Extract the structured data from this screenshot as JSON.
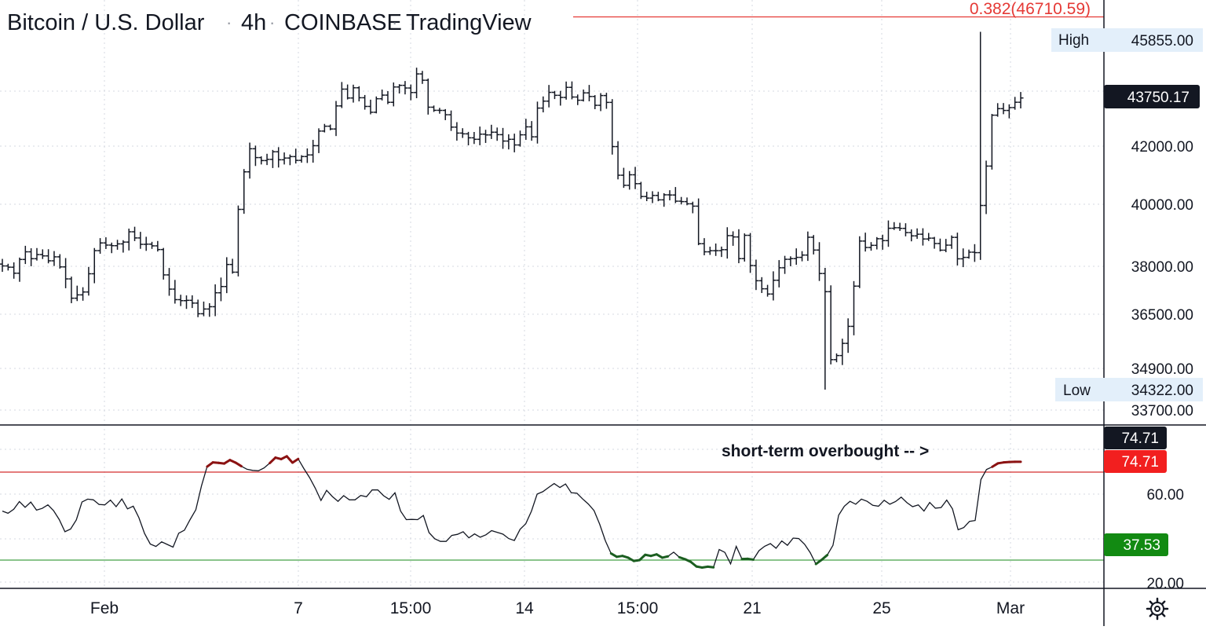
{
  "header": {
    "symbol": "Bitcoin / U.S. Dollar",
    "interval": "4h",
    "exchange": "COINBASE",
    "brand": "TradingView",
    "sep": "·"
  },
  "colors": {
    "bg": "#ffffff",
    "candle": "#131722",
    "grid": "#d6d9e0",
    "fib_line": "#e53935",
    "overbought_seg": "#8b1212",
    "oversold_seg": "#1b5e20",
    "upper_band": "#d32f2f",
    "lower_band": "#43a047",
    "label_dark": "#131722",
    "label_red": "#f21f1f",
    "label_green": "#128a12",
    "hl_box": "#e3effa"
  },
  "chart_data": [
    {
      "type": "ohlc",
      "title": "Bitcoin / U.S. Dollar · 4h · COINBASE · TradingView",
      "y_scale": {
        "ticks": [
          {
            "label": "45855.00",
            "value": 45855
          },
          {
            "label": "42000.00",
            "value": 42000
          },
          {
            "label": "40000.00",
            "value": 40000
          },
          {
            "label": "38000.00",
            "value": 38000
          },
          {
            "label": "36500.00",
            "value": 36500
          },
          {
            "label": "34900.00",
            "value": 34900
          },
          {
            "label": "34322.00",
            "value": 34322
          },
          {
            "label": "33700.00",
            "value": 33700
          }
        ]
      },
      "fib_level": {
        "label": "0.382(46710.59)",
        "value": 46710.59
      },
      "high": {
        "tag": "High",
        "label": "45855.00",
        "value": 45855
      },
      "low": {
        "tag": "Low",
        "label": "34322.00",
        "value": 34322
      },
      "last_price": {
        "label": "43750.17",
        "value": 43750.17
      },
      "candles_close": [
        38011.9,
        37971.3,
        37783.2,
        38220.4,
        38467.3,
        38244.8,
        38377.3,
        38335.7,
        38176.9,
        38305.1,
        37981,
        37605.7,
        37001.2,
        37105.6,
        37195.9,
        37766.3,
        38504.5,
        38752.5,
        38683.6,
        38664.7,
        38722.6,
        38780.4,
        39112.3,
        38913.9,
        38707.9,
        38713.7,
        38659.1,
        38539.8,
        37730.9,
        37285.6,
        36956.1,
        36924.3,
        36934.6,
        36848.2,
        36514.5,
        36662.6,
        36734.8,
        37171.2,
        37366.8,
        38058.7,
        37815.8,
        39834.6,
        41114.8,
        41909.1,
        41605.5,
        41502.6,
        41543.4,
        41805.6,
        41530.2,
        41589.5,
        41639.3,
        41510,
        41641.2,
        41696.6,
        42015.2,
        42546.9,
        42723.4,
        42622.3,
        43461.4,
        44071.3,
        43749.1,
        44120.3,
        43758.2,
        43442.6,
        43230.8,
        43722.1,
        43853.6,
        43592.5,
        44149.6,
        44208.9,
        44112.1,
        43947.6,
        44624.6,
        44394.6,
        43414.7,
        43301.4,
        43297.9,
        43140.1,
        42690.2,
        42473.4,
        42446.3,
        42301.9,
        42247.8,
        42434.4,
        42407.3,
        42505.8,
        42416.1,
        42183.8,
        42247.6,
        42042.1,
        42410.8,
        42700.4,
        42336.9,
        43382.2,
        43634.9,
        43953.7,
        43846.5,
        43769.4,
        44135.8,
        43784,
        43667.9,
        43934.6,
        43803.7,
        43483.4,
        43838.5,
        43588.8,
        41984.1,
        40998.5,
        40651,
        41013.6,
        40708.6,
        40264.9,
        40211.9,
        40303.1,
        40151.5,
        40324.3,
        40317.7,
        40105.7,
        40091.2,
        40015.5,
        39938.4,
        38728.2,
        38467.1,
        38502,
        38503.7,
        38535.5,
        38988.5,
        38946.1,
        38247.3,
        38998.1,
        38022.2,
        37548.3,
        37296.1,
        37131.6,
        37563.4,
        37954.1,
        38225.7,
        38247.3,
        38287.9,
        38361.8,
        38936.4,
        38523.3,
        37774.2,
        37205.3,
        35158.7,
        35279.9,
        35639.4,
        36141.8,
        37379.4,
        38813.3,
        38605.6,
        38675.3,
        38888.3,
        38827.4,
        39225.8,
        39243.1,
        39222.3,
        39086.3,
        38980.3,
        39033.8,
        38880.4,
        38907.5,
        38733.7,
        38519.4,
        38681.8,
        38932.4,
        38241.3,
        38286.9,
        38455.2,
        38440.6,
        39960.6,
        41312.7,
        43124.2,
        43361.8,
        43296.5,
        43400.4,
        43594.4,
        43750.2
      ],
      "rsi": {
        "upper_band": 70,
        "lower_band": 30,
        "ticks": [
          {
            "label": "60.00",
            "value": 60
          },
          {
            "label": "20.00",
            "value": 20
          }
        ],
        "last_label": "74.71",
        "upper_label": "74.71",
        "lower_label": "37.53",
        "annotation": "short-term overbought -- >",
        "values": [
          52.3,
          51.3,
          53.1,
          56.6,
          54,
          56.4,
          52.7,
          53.5,
          55.1,
          52.5,
          48.4,
          42.9,
          44.1,
          48.3,
          56.4,
          57.7,
          57.4,
          55.3,
          55.1,
          57.3,
          54.3,
          57.8,
          53.3,
          54.5,
          49.3,
          42.1,
          37.3,
          36.2,
          38.3,
          37.1,
          35.9,
          42.2,
          43.6,
          48.4,
          52.9,
          63.7,
          72.5,
          74.4,
          74.2,
          73.9,
          75.5,
          74.3,
          72.7,
          71.3,
          70.8,
          70.6,
          71.9,
          74.1,
          76.6,
          75.9,
          77.2,
          74.3,
          76,
          71.6,
          67.5,
          62.7,
          57.1,
          61.7,
          58.9,
          56.7,
          59.3,
          57.4,
          57.4,
          59.4,
          58.8,
          61.9,
          61.9,
          59.3,
          57.6,
          60.6,
          52.3,
          48.4,
          48.5,
          48.4,
          50.3,
          42.5,
          39.7,
          38.5,
          38.5,
          41.2,
          41.7,
          42.9,
          40.1,
          41.9,
          40.4,
          41.5,
          43.4,
          42.6,
          41.8,
          39.8,
          38.9,
          44,
          46.5,
          52.3,
          60,
          61.1,
          63,
          64.8,
          63,
          64.6,
          60.6,
          60.4,
          57.8,
          55.5,
          52.5,
          46.3,
          38.7,
          33,
          31.5,
          31.9,
          31.1,
          29.6,
          30,
          32.4,
          31.9,
          32.6,
          31.1,
          31.7,
          33.6,
          31.3,
          30.4,
          29.2,
          27.1,
          26.6,
          27,
          26.7,
          34.8,
          33.5,
          28.3,
          36.2,
          30.5,
          30.6,
          30.2,
          34.3,
          36.3,
          37.5,
          35.4,
          38.7,
          36.7,
          40,
          39.8,
          37.2,
          33.4,
          28.2,
          30.1,
          32.3,
          36.7,
          50.4,
          54.5,
          56.7,
          55.4,
          57.7,
          56.7,
          54.9,
          54.5,
          57.2,
          55.4,
          56.6,
          58.6,
          56.1,
          54.3,
          55.1,
          52.3,
          56.2,
          53.6,
          53.9,
          57.3,
          53.3,
          43.8,
          44.8,
          47.6,
          48,
          66.6,
          71.2,
          72.4,
          74,
          74.4,
          74.6,
          74.7,
          74.7
        ]
      },
      "x_axis_labels": [
        "Feb",
        "7",
        "15:00",
        "14",
        "15:00",
        "21",
        "25",
        "Mar"
      ]
    }
  ]
}
